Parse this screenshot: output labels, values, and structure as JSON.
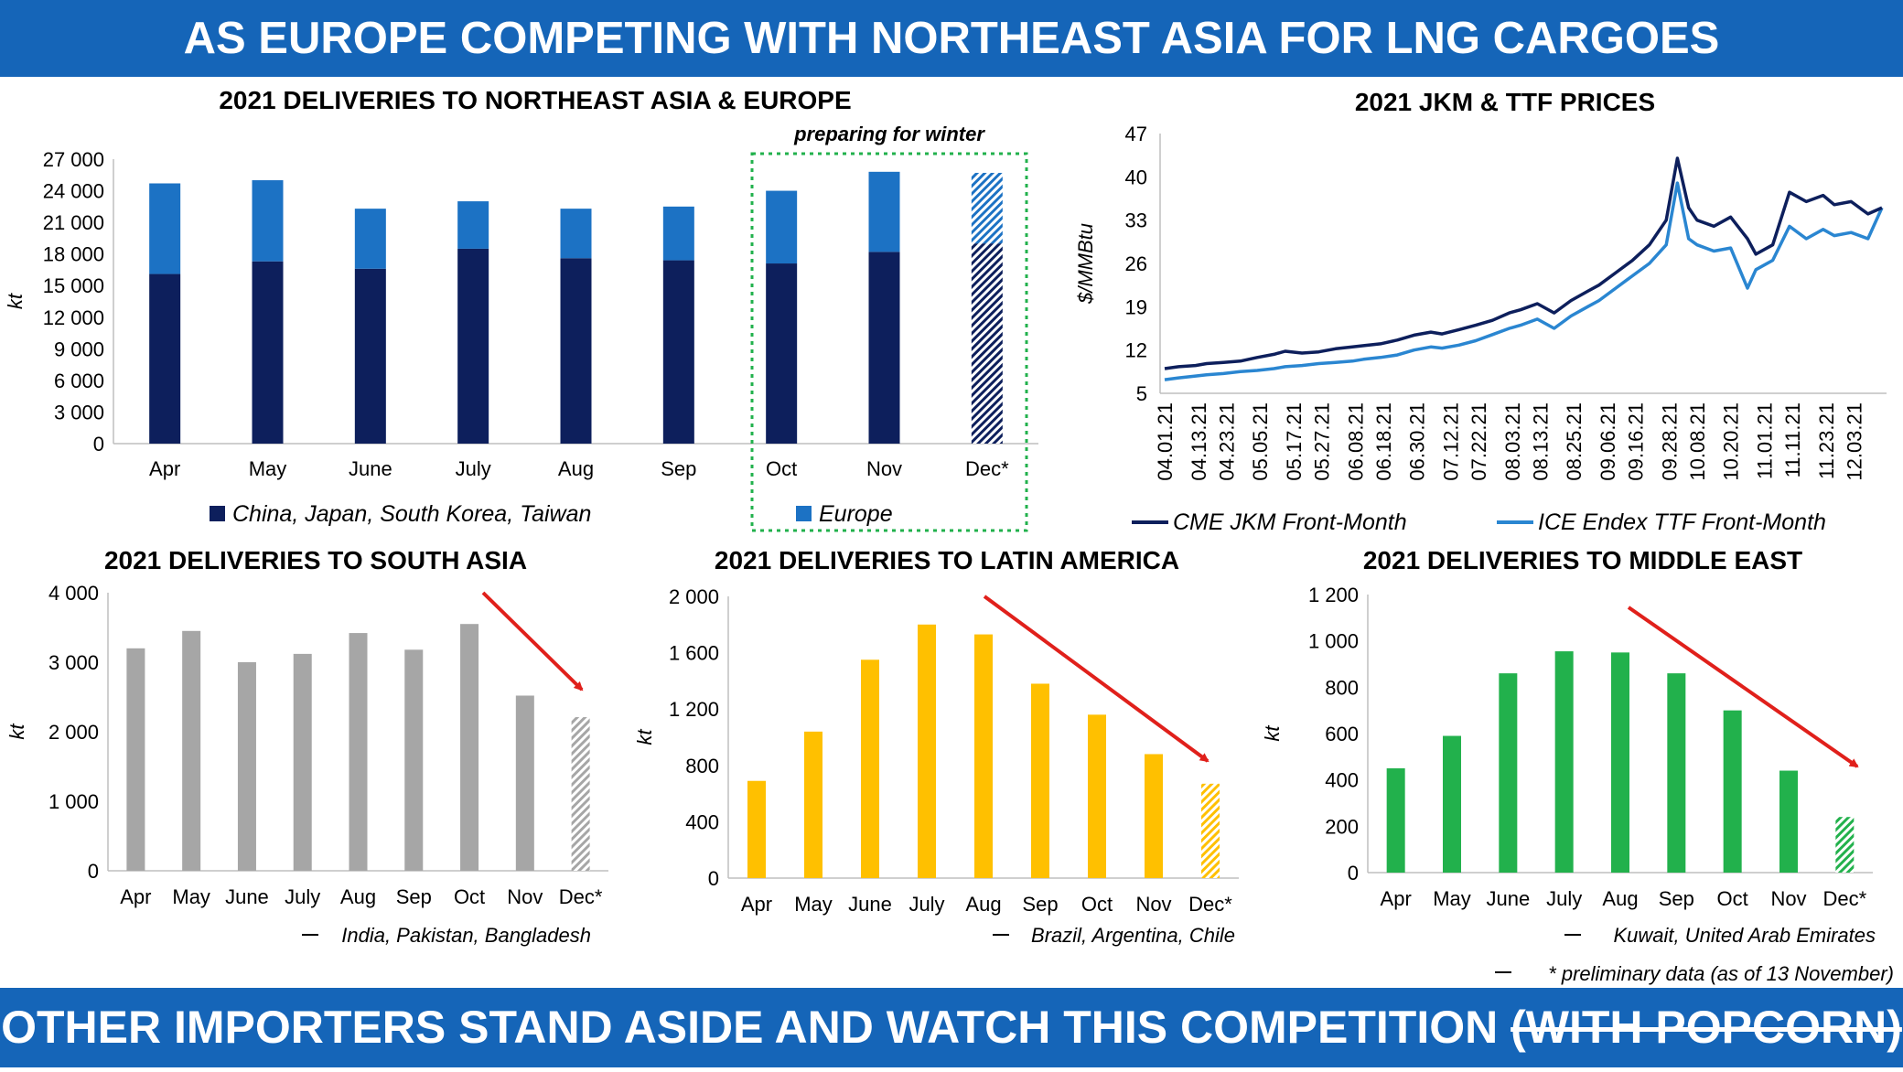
{
  "banner_top": "AS EUROPE COMPETING WITH NORTHEAST ASIA FOR LNG CARGOES",
  "banner_bottom": {
    "main": "OTHER IMPORTERS STAND ASIDE AND WATCH THIS COMPETITION",
    "struck": "(WITH POPCORN)"
  },
  "footnote": "* preliminary data (as of 13 November)",
  "colors": {
    "banner": "#1565b8",
    "nea": "#0d1f5c",
    "europe": "#1c72c4",
    "south_asia": "#a6a6a6",
    "latam": "#ffc000",
    "middle_east": "#22b14c",
    "jkm": "#0d1f5c",
    "ttf": "#2a86d1",
    "arrow": "#e0201b",
    "highlight_box": "#22b14c"
  },
  "chart_data": [
    {
      "id": "nea_europe",
      "type": "bar",
      "stacked": true,
      "title": "2021 DELIVERIES TO NORTHEAST ASIA & EUROPE",
      "ylabel": "kt",
      "ylim": [
        0,
        27000
      ],
      "yticks": [
        "0",
        "3 000",
        "6 000",
        "9 000",
        "12 000",
        "15 000",
        "18 000",
        "21 000",
        "24 000",
        "27 000"
      ],
      "categories": [
        "Apr",
        "May",
        "June",
        "July",
        "Aug",
        "Sep",
        "Oct",
        "Nov",
        "Dec*"
      ],
      "series": [
        {
          "name": "China, Japan, South Korea, Taiwan",
          "values": [
            16100,
            17300,
            16600,
            18500,
            17600,
            17400,
            17100,
            18200,
            19000
          ]
        },
        {
          "name": "Europe",
          "values": [
            8600,
            7700,
            5700,
            4500,
            4700,
            5100,
            6900,
            7600,
            6700
          ]
        }
      ],
      "preliminary_category": "Dec*",
      "annotation": "preparing for winter",
      "highlight": [
        "Oct",
        "Nov",
        "Dec*"
      ]
    },
    {
      "id": "jkm_ttf",
      "type": "line",
      "title": "2021 JKM & TTF PRICES",
      "ylabel": "$/MMBtu",
      "ylim": [
        5,
        47
      ],
      "yticks": [
        "5",
        "12",
        "19",
        "26",
        "33",
        "40",
        "47"
      ],
      "xticks": [
        "04.01.21",
        "04.13.21",
        "04.23.21",
        "05.05.21",
        "05.17.21",
        "05.27.21",
        "06.08.21",
        "06.18.21",
        "06.30.21",
        "07.12.21",
        "07.22.21",
        "08.03.21",
        "08.13.21",
        "08.25.21",
        "09.06.21",
        "09.16.21",
        "09.28.21",
        "10.08.21",
        "10.20.21",
        "11.01.21",
        "11.11.21",
        "11.23.21",
        "12.03.21"
      ],
      "x": [
        "04.01.21",
        "04.06.21",
        "04.12.21",
        "04.16.21",
        "04.22.21",
        "04.28.21",
        "05.04.21",
        "05.10.21",
        "05.14.21",
        "05.20.21",
        "05.26.21",
        "06.01.21",
        "06.07.21",
        "06.11.21",
        "06.17.21",
        "06.23.21",
        "06.29.21",
        "07.05.21",
        "07.09.21",
        "07.15.21",
        "07.21.21",
        "07.27.21",
        "08.02.21",
        "08.06.21",
        "08.12.21",
        "08.18.21",
        "08.24.21",
        "08.30.21",
        "09.03.21",
        "09.09.21",
        "09.15.21",
        "09.21.21",
        "09.27.21",
        "10.01.21",
        "10.05.21",
        "10.08.21",
        "10.14.21",
        "10.20.21",
        "10.26.21",
        "10.29.21",
        "11.04.21",
        "11.10.21",
        "11.16.21",
        "11.22.21",
        "11.26.21",
        "12.02.21",
        "12.08.21",
        "12.13.21"
      ],
      "series": [
        {
          "name": "CME JKM Front-Month",
          "values": [
            9.0,
            9.3,
            9.5,
            9.8,
            10.0,
            10.2,
            10.8,
            11.3,
            11.8,
            11.5,
            11.7,
            12.2,
            12.5,
            12.7,
            13.0,
            13.6,
            14.4,
            14.9,
            14.6,
            15.3,
            16.0,
            16.8,
            18.0,
            18.5,
            19.5,
            18.0,
            20.0,
            21.5,
            22.5,
            24.5,
            26.5,
            29.0,
            33.0,
            43.0,
            35.0,
            33.0,
            32.0,
            33.5,
            30.0,
            27.5,
            29.0,
            37.5,
            36.0,
            37.0,
            35.5,
            36.0,
            34.0,
            35.0
          ]
        },
        {
          "name": "ICE Endex TTF Front-Month",
          "values": [
            7.2,
            7.5,
            7.8,
            8.0,
            8.2,
            8.5,
            8.7,
            9.0,
            9.3,
            9.5,
            9.8,
            10.0,
            10.2,
            10.5,
            10.8,
            11.2,
            12.0,
            12.5,
            12.3,
            12.8,
            13.5,
            14.5,
            15.5,
            16.0,
            17.0,
            15.5,
            17.5,
            19.0,
            20.0,
            22.0,
            24.0,
            26.0,
            29.0,
            39.0,
            30.0,
            29.0,
            28.0,
            28.5,
            22.0,
            25.0,
            26.5,
            32.0,
            30.0,
            31.5,
            30.5,
            31.0,
            30.0,
            35.0
          ]
        }
      ]
    },
    {
      "id": "south_asia",
      "type": "bar",
      "title": "2021 DELIVERIES TO SOUTH ASIA",
      "ylabel": "kt",
      "ylim": [
        0,
        4000
      ],
      "yticks": [
        "0",
        "1 000",
        "2 000",
        "3 000",
        "4 000"
      ],
      "categories": [
        "Apr",
        "May",
        "June",
        "July",
        "Aug",
        "Sep",
        "Oct",
        "Nov",
        "Dec*"
      ],
      "series": [
        {
          "name": "India, Pakistan, Bangladesh",
          "values": [
            3200,
            3450,
            3000,
            3120,
            3420,
            3180,
            3550,
            2520,
            2210
          ]
        }
      ],
      "preliminary_category": "Dec*"
    },
    {
      "id": "latin_america",
      "type": "bar",
      "title": "2021 DELIVERIES TO LATIN AMERICA",
      "ylabel": "kt",
      "ylim": [
        0,
        2000
      ],
      "yticks": [
        "0",
        "400",
        "800",
        "1 200",
        "1 600",
        "2 000"
      ],
      "categories": [
        "Apr",
        "May",
        "June",
        "July",
        "Aug",
        "Sep",
        "Oct",
        "Nov",
        "Dec*"
      ],
      "series": [
        {
          "name": "Brazil, Argentina, Chile",
          "values": [
            690,
            1040,
            1550,
            1800,
            1730,
            1380,
            1160,
            880,
            670
          ]
        }
      ],
      "preliminary_category": "Dec*"
    },
    {
      "id": "middle_east",
      "type": "bar",
      "title": "2021 DELIVERIES TO MIDDLE EAST",
      "ylabel": "kt",
      "ylim": [
        0,
        1200
      ],
      "yticks": [
        "0",
        "200",
        "400",
        "600",
        "800",
        "1 000",
        "1 200"
      ],
      "categories": [
        "Apr",
        "May",
        "June",
        "July",
        "Aug",
        "Sep",
        "Oct",
        "Nov",
        "Dec*"
      ],
      "series": [
        {
          "name": "Kuwait, United Arab Emirates",
          "values": [
            450,
            590,
            860,
            955,
            950,
            860,
            700,
            440,
            240
          ]
        }
      ],
      "preliminary_category": "Dec*"
    }
  ]
}
